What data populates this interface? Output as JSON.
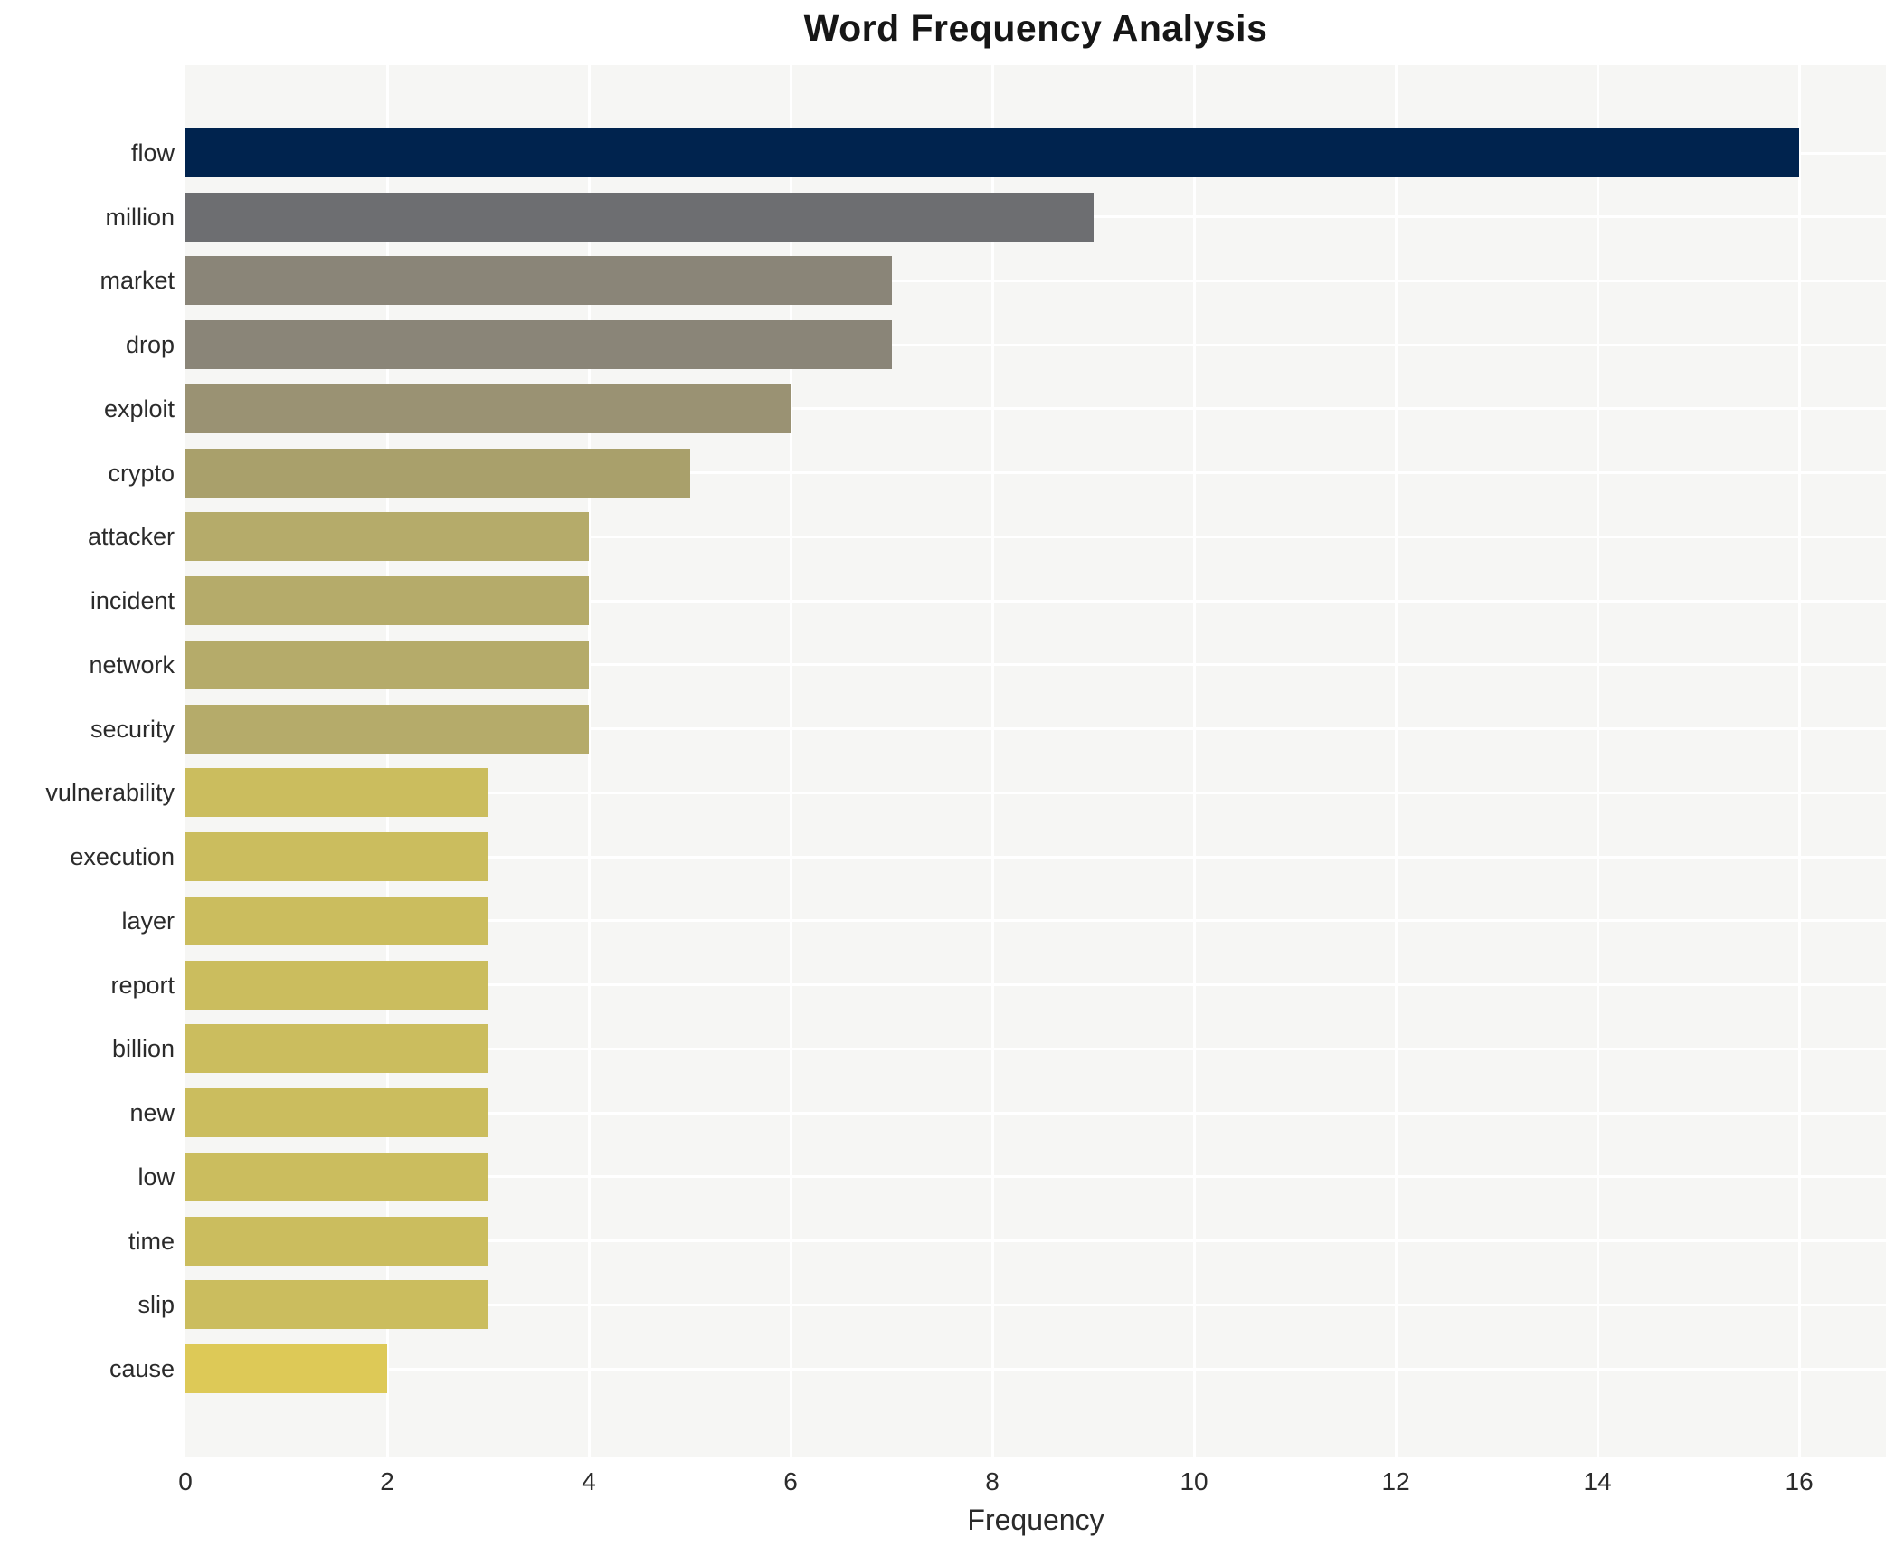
{
  "chart_data": {
    "type": "bar",
    "orientation": "horizontal",
    "title": "Word Frequency Analysis",
    "xlabel": "Frequency",
    "ylabel": "",
    "categories": [
      "flow",
      "million",
      "market",
      "drop",
      "exploit",
      "crypto",
      "attacker",
      "incident",
      "network",
      "security",
      "vulnerability",
      "execution",
      "layer",
      "report",
      "billion",
      "new",
      "low",
      "time",
      "slip",
      "cause"
    ],
    "values": [
      16,
      9,
      7,
      7,
      6,
      5,
      4,
      4,
      4,
      4,
      3,
      3,
      3,
      3,
      3,
      3,
      3,
      3,
      3,
      2
    ],
    "bar_colors": [
      "#00234e",
      "#6d6e71",
      "#8a8578",
      "#8a8578",
      "#9a9273",
      "#a9a06b",
      "#b5ab6a",
      "#b5ab6a",
      "#b5ab6a",
      "#b5ab6a",
      "#cbbd5e",
      "#cbbd5e",
      "#cbbd5e",
      "#cbbd5e",
      "#cbbd5e",
      "#cbbd5e",
      "#cbbd5e",
      "#cbbd5e",
      "#cbbd5e",
      "#ddc957"
    ],
    "xlim": [
      0,
      16.86
    ],
    "xticks": [
      0,
      2,
      4,
      6,
      8,
      10,
      12,
      14,
      16
    ],
    "grid": true,
    "legend_position": "none",
    "colors": {
      "plot_background": "#f6f6f4",
      "grid_color": "#ffffff",
      "tick_text_color": "#2b2b2b",
      "title_color": "#161616"
    }
  }
}
